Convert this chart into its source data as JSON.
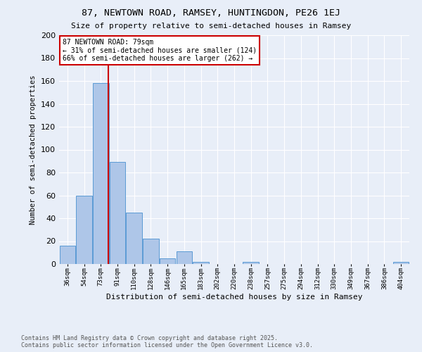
{
  "title": "87, NEWTOWN ROAD, RAMSEY, HUNTINGDON, PE26 1EJ",
  "subtitle": "Size of property relative to semi-detached houses in Ramsey",
  "xlabel": "Distribution of semi-detached houses by size in Ramsey",
  "ylabel": "Number of semi-detached properties",
  "bin_labels": [
    "36sqm",
    "54sqm",
    "73sqm",
    "91sqm",
    "110sqm",
    "128sqm",
    "146sqm",
    "165sqm",
    "183sqm",
    "202sqm",
    "220sqm",
    "238sqm",
    "257sqm",
    "275sqm",
    "294sqm",
    "312sqm",
    "330sqm",
    "349sqm",
    "367sqm",
    "386sqm",
    "404sqm"
  ],
  "bar_values": [
    16,
    60,
    158,
    89,
    45,
    22,
    5,
    11,
    2,
    0,
    0,
    2,
    0,
    0,
    0,
    0,
    0,
    0,
    0,
    0,
    2
  ],
  "bar_color": "#aec6e8",
  "bar_edge_color": "#5b9bd5",
  "vline_color": "#cc0000",
  "vline_bin_index": 2,
  "annotation_title": "87 NEWTOWN ROAD: 79sqm",
  "annotation_line1": "← 31% of semi-detached houses are smaller (124)",
  "annotation_line2": "66% of semi-detached houses are larger (262) →",
  "annotation_box_color": "#cc0000",
  "ylim": [
    0,
    200
  ],
  "yticks": [
    0,
    20,
    40,
    60,
    80,
    100,
    120,
    140,
    160,
    180,
    200
  ],
  "bg_color": "#e8eef8",
  "plot_bg_color": "#e8eef8",
  "grid_color": "#ffffff",
  "footer_line1": "Contains HM Land Registry data © Crown copyright and database right 2025.",
  "footer_line2": "Contains public sector information licensed under the Open Government Licence v3.0."
}
